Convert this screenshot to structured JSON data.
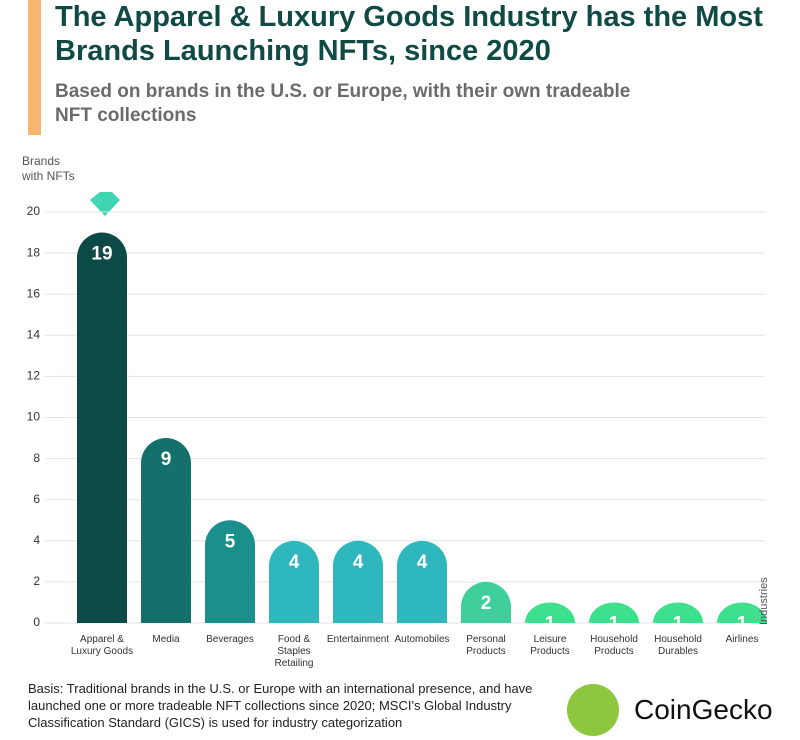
{
  "chart_data": {
    "type": "bar",
    "title": "The Apparel & Luxury Goods Industry has the Most Brands Launching NFTs, since 2020",
    "subtitle": "Based on brands in the U.S. or Europe, with their own tradeable NFT collections",
    "y_label": "Brands\nwith NFTs",
    "x_label": "Industries",
    "categories": [
      "Apparel &\nLuxury Goods",
      "Media",
      "Beverages",
      "Food &\nStaples\nRetailing",
      "Entertainment",
      "Automobiles",
      "Personal\nProducts",
      "Leisure\nProducts",
      "Household\nProducts",
      "Household\nDurables",
      "Airlines"
    ],
    "values": [
      19,
      9,
      5,
      4,
      4,
      4,
      2,
      1,
      1,
      1,
      1
    ],
    "colors": [
      "#0b4a46",
      "#13706a",
      "#1b8f8c",
      "#2eb8bd",
      "#2eb8bd",
      "#2eb8bd",
      "#3fcf9a",
      "#3ee08e",
      "#3ee08e",
      "#3ee08e",
      "#3ee08e"
    ],
    "ylim": [
      0,
      20
    ],
    "yticks": [
      0,
      2,
      4,
      6,
      8,
      10,
      12,
      14,
      16,
      18,
      20
    ],
    "grid": true,
    "footnote": "Basis: Traditional brands in the U.S. or Europe with an international presence, and have launched one or more tradeable NFT collections since 2020; MSCI's Global Industry Classification Standard (GICS) is used for industry categorization",
    "source": "CoinGecko"
  }
}
